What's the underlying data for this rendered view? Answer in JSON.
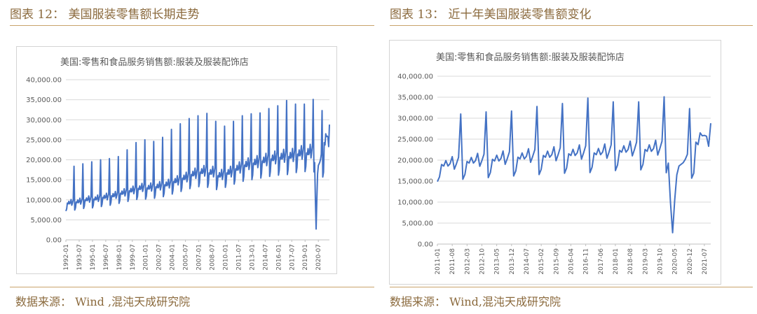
{
  "figures": [
    {
      "title": "图表 12： 美国服装零售额长期走势",
      "source": "数据来源： Wind ,混沌天成研究院",
      "chart_data": {
        "type": "line",
        "title": "美国:零售和食品服务销售额:服装及服装配饰店",
        "xlabel": "",
        "ylabel": "",
        "ylim": [
          0,
          40000
        ],
        "y_ticks": [
          "0.00",
          "5,000.00",
          "10,000.00",
          "15,000.00",
          "20,000.00",
          "25,000.00",
          "30,000.00",
          "35,000.00",
          "40,000.00"
        ],
        "x_ticks": [
          "1992-01",
          "1993-07",
          "1995-01",
          "1996-07",
          "1998-01",
          "1999-07",
          "2001-01",
          "2002-07",
          "2004-01",
          "2005-07",
          "2007-01",
          "2008-07",
          "2010-01",
          "2011-07",
          "2013-01",
          "2014-07",
          "2016-01",
          "2017-07",
          "2019-01",
          "2020-07"
        ],
        "grid": true,
        "legend": "none",
        "color": "#4472c4",
        "x_start": "1992-01",
        "x_end": "2021-10",
        "annual_base": [
          {
            "year": 1992,
            "base": 9000,
            "dec": 18400
          },
          {
            "year": 1993,
            "base": 9300,
            "dec": 19000
          },
          {
            "year": 1994,
            "base": 9800,
            "dec": 19500
          },
          {
            "year": 1995,
            "base": 10000,
            "dec": 20000
          },
          {
            "year": 1996,
            "base": 10400,
            "dec": 20300
          },
          {
            "year": 1997,
            "base": 10800,
            "dec": 20800
          },
          {
            "year": 1998,
            "base": 11400,
            "dec": 22500
          },
          {
            "year": 1999,
            "base": 12000,
            "dec": 24300
          },
          {
            "year": 2000,
            "base": 12600,
            "dec": 25000
          },
          {
            "year": 2001,
            "base": 12700,
            "dec": 24600
          },
          {
            "year": 2002,
            "base": 13000,
            "dec": 25600
          },
          {
            "year": 2003,
            "base": 13500,
            "dec": 27600
          },
          {
            "year": 2004,
            "base": 14300,
            "dec": 29000
          },
          {
            "year": 2005,
            "base": 15100,
            "dec": 30300
          },
          {
            "year": 2006,
            "base": 16000,
            "dec": 31000
          },
          {
            "year": 2007,
            "base": 16600,
            "dec": 31600
          },
          {
            "year": 2008,
            "base": 16400,
            "dec": 29600
          },
          {
            "year": 2009,
            "base": 15700,
            "dec": 28400
          },
          {
            "year": 2010,
            "base": 16400,
            "dec": 29600
          },
          {
            "year": 2011,
            "base": 17400,
            "dec": 31000
          },
          {
            "year": 2012,
            "base": 18300,
            "dec": 31500
          },
          {
            "year": 2013,
            "base": 18800,
            "dec": 31700
          },
          {
            "year": 2014,
            "base": 19300,
            "dec": 32800
          },
          {
            "year": 2015,
            "base": 19800,
            "dec": 33500
          },
          {
            "year": 2016,
            "base": 20200,
            "dec": 34800
          },
          {
            "year": 2017,
            "base": 20400,
            "dec": 33900
          },
          {
            "year": 2018,
            "base": 21000,
            "dec": 33900
          },
          {
            "year": 2019,
            "base": 21300,
            "dec": 35100
          }
        ],
        "tail_values": [
          {
            "x": "2020-01",
            "y": 17000
          },
          {
            "x": "2020-02",
            "y": 19300
          },
          {
            "x": "2020-03",
            "y": 9800
          },
          {
            "x": "2020-04",
            "y": 2700
          },
          {
            "x": "2020-05",
            "y": 10500
          },
          {
            "x": "2020-06",
            "y": 16500
          },
          {
            "x": "2020-07",
            "y": 18600
          },
          {
            "x": "2020-08",
            "y": 19000
          },
          {
            "x": "2020-09",
            "y": 19400
          },
          {
            "x": "2020-10",
            "y": 20200
          },
          {
            "x": "2020-11",
            "y": 21400
          },
          {
            "x": "2020-12",
            "y": 32300
          },
          {
            "x": "2021-01",
            "y": 15700
          },
          {
            "x": "2021-02",
            "y": 16900
          },
          {
            "x": "2021-03",
            "y": 24300
          },
          {
            "x": "2021-04",
            "y": 23700
          },
          {
            "x": "2021-05",
            "y": 26500
          },
          {
            "x": "2021-06",
            "y": 25800
          },
          {
            "x": "2021-07",
            "y": 25900
          },
          {
            "x": "2021-08",
            "y": 25700
          },
          {
            "x": "2021-09",
            "y": 23300
          },
          {
            "x": "2021-10",
            "y": 28800
          }
        ]
      }
    },
    {
      "title": "图表 13： 近十年美国服装零售额变化",
      "source": "数据来源： Wind,混沌天成研究院",
      "chart_data": {
        "type": "line",
        "title": "美国:零售和食品服务销售额:服装及服装配饰店",
        "xlabel": "",
        "ylabel": "",
        "ylim": [
          0,
          40000
        ],
        "y_ticks": [
          "0.00",
          "5,000.00",
          "10,000.00",
          "15,000.00",
          "20,000.00",
          "25,000.00",
          "30,000.00",
          "35,000.00",
          "40,000.00"
        ],
        "x_ticks": [
          "2011-01",
          "2011-08",
          "2012-03",
          "2012-10",
          "2013-05",
          "2013-12",
          "2014-07",
          "2015-02",
          "2015-09",
          "2016-04",
          "2016-11",
          "2017-06",
          "2018-01",
          "2018-08",
          "2019-03",
          "2019-10",
          "2020-05",
          "2020-12",
          "2021-07"
        ],
        "grid": true,
        "legend": "none",
        "color": "#4472c4",
        "x_start": "2011-01",
        "x_end": "2021-10",
        "annual_base": [
          {
            "year": 2011,
            "base": 18600,
            "dec": 31000
          },
          {
            "year": 2012,
            "base": 19300,
            "dec": 31500
          },
          {
            "year": 2013,
            "base": 19800,
            "dec": 31700
          },
          {
            "year": 2014,
            "base": 20300,
            "dec": 32800
          },
          {
            "year": 2015,
            "base": 20700,
            "dec": 33500
          },
          {
            "year": 2016,
            "base": 21100,
            "dec": 34800
          },
          {
            "year": 2017,
            "base": 21300,
            "dec": 33900
          },
          {
            "year": 2018,
            "base": 21900,
            "dec": 33900
          },
          {
            "year": 2019,
            "base": 22100,
            "dec": 35100
          }
        ],
        "tail_values": [
          {
            "x": "2020-01",
            "y": 17000
          },
          {
            "x": "2020-02",
            "y": 19300
          },
          {
            "x": "2020-03",
            "y": 9800
          },
          {
            "x": "2020-04",
            "y": 2700
          },
          {
            "x": "2020-05",
            "y": 10500
          },
          {
            "x": "2020-06",
            "y": 16500
          },
          {
            "x": "2020-07",
            "y": 18600
          },
          {
            "x": "2020-08",
            "y": 19000
          },
          {
            "x": "2020-09",
            "y": 19400
          },
          {
            "x": "2020-10",
            "y": 20200
          },
          {
            "x": "2020-11",
            "y": 21400
          },
          {
            "x": "2020-12",
            "y": 32300
          },
          {
            "x": "2021-01",
            "y": 15700
          },
          {
            "x": "2021-02",
            "y": 16900
          },
          {
            "x": "2021-03",
            "y": 24300
          },
          {
            "x": "2021-04",
            "y": 23700
          },
          {
            "x": "2021-05",
            "y": 26500
          },
          {
            "x": "2021-06",
            "y": 25800
          },
          {
            "x": "2021-07",
            "y": 25900
          },
          {
            "x": "2021-08",
            "y": 25700
          },
          {
            "x": "2021-09",
            "y": 23300
          },
          {
            "x": "2021-10",
            "y": 28800
          }
        ]
      }
    }
  ]
}
